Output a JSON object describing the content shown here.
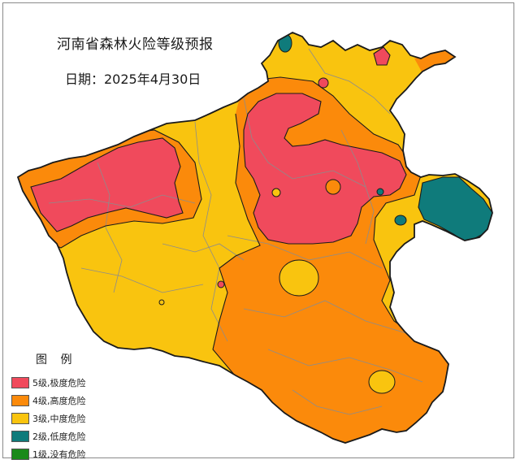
{
  "map": {
    "title": "河南省森林火险等级预报",
    "date_label": "日期：2025年4月30日"
  },
  "legend": {
    "title": "图 例",
    "items": [
      {
        "label": "5级,极度危险",
        "color": "#f04a5c"
      },
      {
        "label": "4级,高度危险",
        "color": "#fb8a0b"
      },
      {
        "label": "3级,中度危险",
        "color": "#f9c40f"
      },
      {
        "label": "2级,低度危险",
        "color": "#0f7b7b"
      },
      {
        "label": "1级,没有危险",
        "color": "#1a8a1a"
      }
    ]
  },
  "colors": {
    "level5": "#f04a5c",
    "level4": "#fb8a0b",
    "level3": "#f9c40f",
    "level2": "#0f7b7b",
    "level1": "#1a8a1a",
    "border": "#1a1a1a",
    "county_lines": "#8c8c8c"
  }
}
